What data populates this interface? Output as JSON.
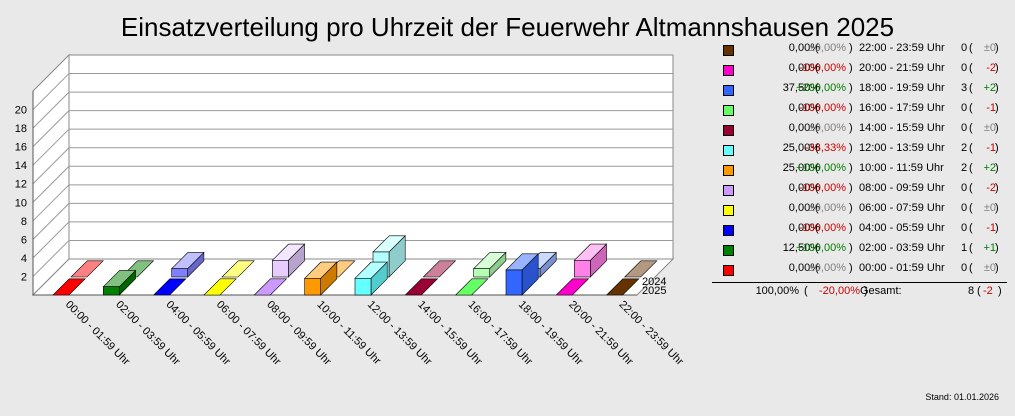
{
  "chart_data": {
    "type": "bar",
    "title": "Einsatzverteilung pro Uhrzeit der Feuerwehr Altmannshausen 2025",
    "categories": [
      "00:00 - 01:59 Uhr",
      "02:00 - 03:59 Uhr",
      "04:00 - 05:59 Uhr",
      "06:00 - 07:59 Uhr",
      "08:00 - 09:59 Uhr",
      "10:00 - 11:59 Uhr",
      "12:00 - 13:59 Uhr",
      "14:00 - 15:59 Uhr",
      "16:00 - 17:59 Uhr",
      "18:00 - 19:59 Uhr",
      "20:00 - 21:59 Uhr",
      "22:00 - 23:59 Uhr"
    ],
    "colors": [
      "#ff0000",
      "#008000",
      "#0000ff",
      "#ffff00",
      "#cc99ff",
      "#ff9900",
      "#66ffff",
      "#990033",
      "#66ff66",
      "#3366ff",
      "#ff00cc",
      "#663300"
    ],
    "series": [
      {
        "name": "2025",
        "values": [
          0,
          1,
          0,
          0,
          0,
          2,
          2,
          0,
          0,
          3,
          0,
          0
        ]
      },
      {
        "name": "2024",
        "values": [
          0,
          0,
          1,
          0,
          2,
          0,
          3,
          0,
          1,
          1,
          2,
          0
        ]
      }
    ],
    "yticks": [
      2,
      4,
      6,
      8,
      10,
      12,
      14,
      16,
      18,
      20
    ],
    "ylim": [
      0,
      20
    ],
    "grid": true
  },
  "legend": {
    "rows": [
      {
        "pct": "0,00%",
        "change": "±0,00%",
        "range": "22:00 - 23:59 Uhr",
        "count": "0",
        "diff": "±0",
        "color": "#663300",
        "trend": "zero"
      },
      {
        "pct": "0,00%",
        "change": "-100,00%",
        "range": "20:00 - 21:59 Uhr",
        "count": "0",
        "diff": "-2",
        "color": "#ff00cc",
        "trend": "neg"
      },
      {
        "pct": "37,50%",
        "change": "+200,00%",
        "range": "18:00 - 19:59 Uhr",
        "count": "3",
        "diff": "+2",
        "color": "#3366ff",
        "trend": "pos"
      },
      {
        "pct": "0,00%",
        "change": "-100,00%",
        "range": "16:00 - 17:59 Uhr",
        "count": "0",
        "diff": "-1",
        "color": "#66ff66",
        "trend": "neg"
      },
      {
        "pct": "0,00%",
        "change": "±0,00%",
        "range": "14:00 - 15:59 Uhr",
        "count": "0",
        "diff": "±0",
        "color": "#990033",
        "trend": "zero"
      },
      {
        "pct": "25,00%",
        "change": "-33,33%",
        "range": "12:00 - 13:59 Uhr",
        "count": "2",
        "diff": "-1",
        "color": "#66ffff",
        "trend": "neg"
      },
      {
        "pct": "25,00%",
        "change": "+100,00%",
        "range": "10:00 - 11:59 Uhr",
        "count": "2",
        "diff": "+2",
        "color": "#ff9900",
        "trend": "pos"
      },
      {
        "pct": "0,00%",
        "change": "-100,00%",
        "range": "08:00 - 09:59 Uhr",
        "count": "0",
        "diff": "-2",
        "color": "#cc99ff",
        "trend": "neg"
      },
      {
        "pct": "0,00%",
        "change": "±0,00%",
        "range": "06:00 - 07:59 Uhr",
        "count": "0",
        "diff": "±0",
        "color": "#ffff00",
        "trend": "zero"
      },
      {
        "pct": "0,00%",
        "change": "-100,00%",
        "range": "04:00 - 05:59 Uhr",
        "count": "0",
        "diff": "-1",
        "color": "#0000ff",
        "trend": "neg"
      },
      {
        "pct": "12,50%",
        "change": "+100,00%",
        "range": "02:00 - 03:59 Uhr",
        "count": "1",
        "diff": "+1",
        "color": "#008000",
        "trend": "pos"
      },
      {
        "pct": "0,00%",
        "change": "±0,00%",
        "range": "00:00 - 01:59 Uhr",
        "count": "0",
        "diff": "±0",
        "color": "#ff0000",
        "trend": "zero"
      }
    ],
    "total": {
      "pct": "100,00%",
      "change": "-20,00%",
      "label": "Gesamt:",
      "count": "8",
      "diff": "-2",
      "trend": "neg"
    }
  },
  "footer": {
    "stand": "Stand: 01.01.2026"
  }
}
